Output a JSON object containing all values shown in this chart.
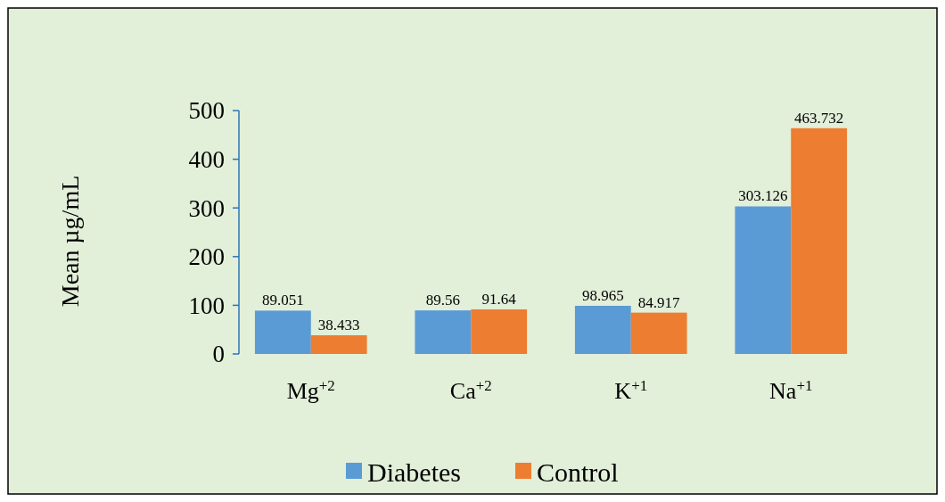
{
  "chart_data": {
    "type": "bar",
    "ylabel": "Mean µg/mL",
    "categories": [
      "Mg$^{+2}$",
      "Ca$^{+2}$",
      "K$^{+1}$",
      "Na$^{+1}$"
    ],
    "series": [
      {
        "name": "Diabetes",
        "color": "#5b9bd5",
        "values": [
          89.051,
          89.56,
          98.965,
          303.126
        ]
      },
      {
        "name": "Control",
        "color": "#ed7d31",
        "values": [
          38.433,
          91.64,
          84.917,
          463.732
        ]
      }
    ],
    "ylim": [
      0,
      500
    ],
    "yticks": [
      0,
      100,
      200,
      300,
      400,
      500
    ],
    "data_labels": true,
    "legend": "bottom",
    "grid": false
  }
}
